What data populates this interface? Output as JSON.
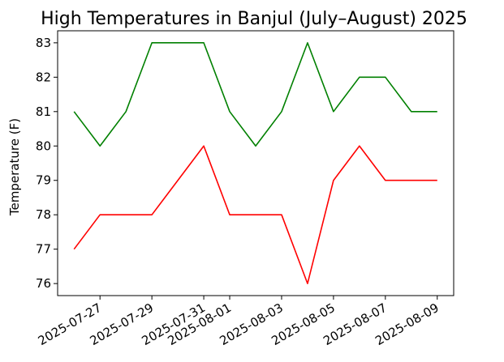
{
  "chart_data": {
    "type": "line",
    "title": "High Temperatures in Banjul (July–August) 2025",
    "xlabel": "",
    "ylabel": "Temperature (F)",
    "x": [
      "2025-07-26",
      "2025-07-27",
      "2025-07-28",
      "2025-07-29",
      "2025-07-30",
      "2025-07-31",
      "2025-08-01",
      "2025-08-02",
      "2025-08-03",
      "2025-08-04",
      "2025-08-05",
      "2025-08-06",
      "2025-08-07",
      "2025-08-08",
      "2025-08-09"
    ],
    "series": [
      {
        "color": "#008000",
        "values": [
          81,
          80,
          81,
          83,
          83,
          83,
          81,
          80,
          81,
          83,
          81,
          82,
          82,
          81,
          81
        ]
      },
      {
        "color": "#ff0000",
        "values": [
          77,
          78,
          78,
          78,
          79,
          80,
          78,
          78,
          78,
          76,
          79,
          80,
          79,
          79,
          79
        ]
      }
    ],
    "x_ticks": [
      "2025-07-27",
      "2025-07-29",
      "2025-07-31",
      "2025-08-01",
      "2025-08-03",
      "2025-08-05",
      "2025-08-07",
      "2025-08-09"
    ],
    "y_ticks": [
      "76",
      "77",
      "78",
      "79",
      "80",
      "81",
      "82",
      "83"
    ],
    "ylim": [
      75.65,
      83.35
    ],
    "xlim": [
      "2025-07-25T08:48",
      "2025-08-09T15:12"
    ],
    "grid": false,
    "legend": "none"
  }
}
